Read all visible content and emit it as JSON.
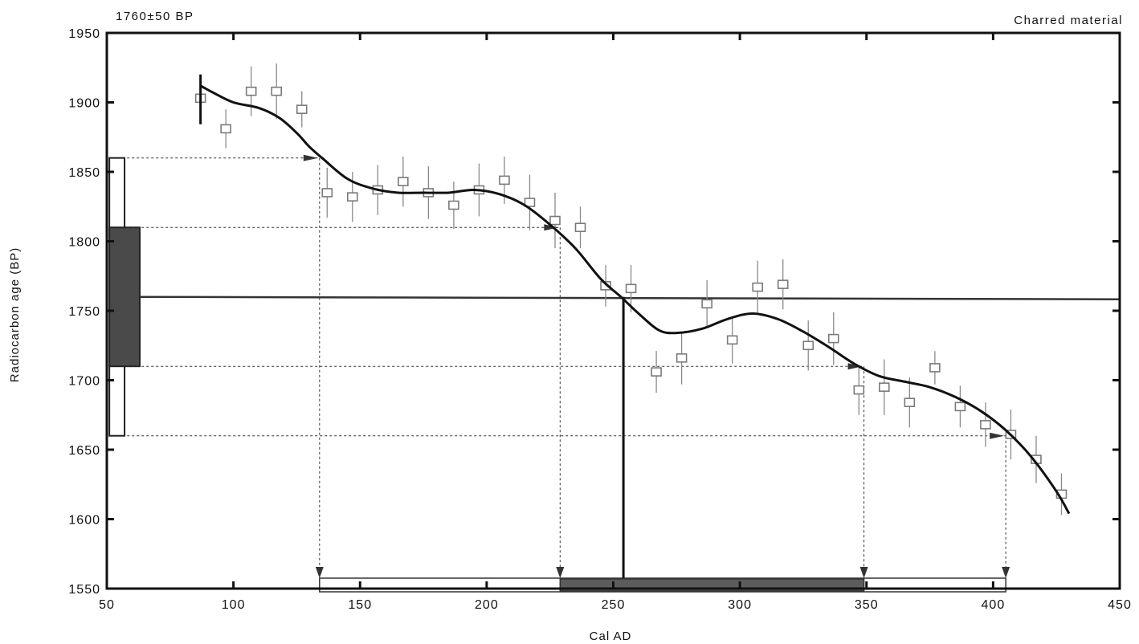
{
  "chart_data": {
    "type": "scatter",
    "title": "",
    "top_left_label": "1760±50 BP",
    "top_right_label": "Charred material",
    "xlabel": "Cal AD",
    "ylabel": "Radiocarbon age (BP)",
    "xlim": [
      50,
      450
    ],
    "ylim": [
      1550,
      1950
    ],
    "xticks": [
      50,
      100,
      150,
      200,
      250,
      300,
      350,
      400,
      450
    ],
    "yticks": [
      1550,
      1600,
      1650,
      1700,
      1750,
      1800,
      1850,
      1900,
      1950
    ],
    "grid": false,
    "measurements": {
      "x": [
        87,
        97,
        107,
        117,
        127,
        137,
        147,
        157,
        167,
        177,
        187,
        197,
        207,
        217,
        227,
        237,
        247,
        257,
        267,
        277,
        287,
        297,
        307,
        317,
        327,
        337,
        347,
        357,
        367,
        377,
        387,
        397,
        407,
        417,
        427
      ],
      "y": [
        1903,
        1881,
        1908,
        1908,
        1895,
        1835,
        1832,
        1837,
        1843,
        1835,
        1826,
        1837,
        1844,
        1828,
        1815,
        1810,
        1768,
        1766,
        1706,
        1716,
        1755,
        1729,
        1767,
        1769,
        1725,
        1730,
        1693,
        1695,
        1684,
        1709,
        1681,
        1668,
        1661,
        1643,
        1618
      ],
      "err": [
        16,
        14,
        18,
        20,
        13,
        18,
        18,
        18,
        18,
        19,
        17,
        19,
        17,
        20,
        20,
        15,
        15,
        17,
        15,
        19,
        17,
        17,
        19,
        18,
        18,
        19,
        18,
        20,
        18,
        12,
        15,
        16,
        18,
        17,
        15
      ]
    },
    "calibration_curve": {
      "x": [
        87,
        92,
        100,
        110,
        118,
        125,
        130,
        135,
        145,
        155,
        165,
        175,
        185,
        195,
        205,
        215,
        225,
        235,
        245,
        253,
        260,
        268,
        275,
        285,
        295,
        305,
        315,
        325,
        335,
        345,
        355,
        365,
        375,
        385,
        395,
        405,
        415,
        425,
        430
      ],
      "y": [
        1912,
        1907,
        1900,
        1896,
        1889,
        1878,
        1868,
        1860,
        1845,
        1838,
        1835,
        1835,
        1835,
        1837,
        1834,
        1826,
        1812,
        1795,
        1773,
        1760,
        1748,
        1736,
        1734,
        1737,
        1744,
        1748,
        1744,
        1735,
        1724,
        1712,
        1703,
        1699,
        1695,
        1688,
        1678,
        1664,
        1645,
        1620,
        1604
      ]
    },
    "measured_age": {
      "bp": 1760,
      "sigma": 50,
      "one_sigma": [
        1710,
        1810
      ],
      "two_sigma": [
        1660,
        1860
      ]
    },
    "calibrated_result": {
      "cal_ad_at_age": 254,
      "one_sigma_range": [
        229,
        349
      ],
      "two_sigma_range": [
        134,
        405
      ]
    }
  }
}
